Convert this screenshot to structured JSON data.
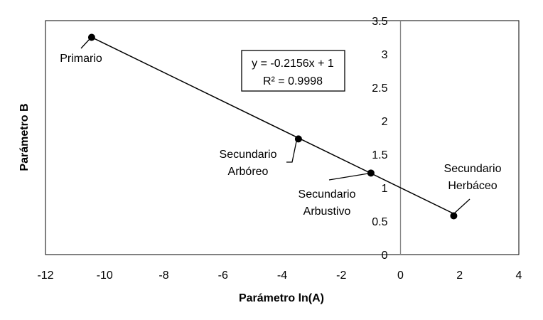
{
  "chart_data": {
    "type": "scatter",
    "xlabel": "Parámetro ln(A)",
    "ylabel": "Parámetro B",
    "xlim": [
      -12,
      4
    ],
    "ylim": [
      0,
      3.5
    ],
    "xticks": [
      "-12",
      "-10",
      "-8",
      "-6",
      "-4",
      "-2",
      "0",
      "2",
      "4"
    ],
    "yticks": [
      "0",
      "0.5",
      "1",
      "1.5",
      "2",
      "2.5",
      "3",
      "3.5"
    ],
    "grid": false,
    "points": [
      {
        "x": -10.44,
        "y": 3.25,
        "label": [
          "Primario"
        ]
      },
      {
        "x": -3.45,
        "y": 1.73,
        "label": [
          "Secundario",
          "Arbóreo"
        ]
      },
      {
        "x": -1.0,
        "y": 1.22,
        "label": [
          "Secundario",
          "Arbustivo"
        ]
      },
      {
        "x": 1.8,
        "y": 0.58,
        "label": [
          "Secundario",
          "Herbáceo"
        ]
      }
    ],
    "trendline": {
      "slope": -0.2156,
      "intercept": 1,
      "x_range": [
        -10.44,
        1.8
      ],
      "equation": "y = -0.2156x + 1",
      "r2": "R² = 0.9998"
    }
  }
}
